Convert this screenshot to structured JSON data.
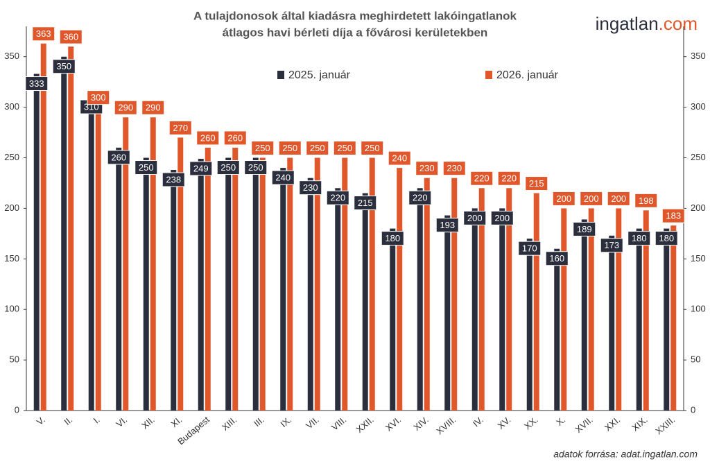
{
  "chart_data": {
    "type": "bar",
    "title": [
      "A tulajdonosok által kiadásra meghirdetett lakóingatlanok",
      "átlagos havi bérleti díja a fővárosi kerületekben"
    ],
    "logo": {
      "name": "ingatlan",
      "suffix": ".com"
    },
    "source": "adatok forrása: adat.ingatlan.com",
    "categories": [
      "V.",
      "II.",
      "I.",
      "VI.",
      "XII.",
      "XI.",
      "Budapest",
      "XIII.",
      "III.",
      "IX.",
      "VII.",
      "VIII.",
      "XXII.",
      "XVI.",
      "XIV.",
      "XVIII.",
      "IV.",
      "XV.",
      "XX.",
      "X.",
      "XVII.",
      "XXI.",
      "XIX.",
      "XXIII."
    ],
    "series": [
      {
        "name": "2025. január",
        "color": "#2b2f3d",
        "values": [
          333,
          350,
          310,
          260,
          250,
          238,
          249,
          250,
          250,
          240,
          230,
          220,
          215,
          180,
          220,
          193,
          200,
          200,
          170,
          160,
          189,
          173,
          180,
          180
        ]
      },
      {
        "name": "2026. január",
        "color": "#e0572b",
        "values": [
          363,
          360,
          300,
          290,
          290,
          270,
          260,
          260,
          250,
          250,
          250,
          250,
          250,
          240,
          230,
          230,
          220,
          220,
          215,
          200,
          200,
          200,
          198,
          183
        ]
      }
    ],
    "ylim": [
      0,
      380
    ],
    "yticks": [
      0,
      50,
      100,
      150,
      200,
      250,
      300,
      350
    ],
    "y2lim": [
      0,
      380
    ],
    "y2ticks": [
      0,
      50,
      100,
      150,
      200,
      250,
      300,
      350
    ],
    "grid": false
  }
}
